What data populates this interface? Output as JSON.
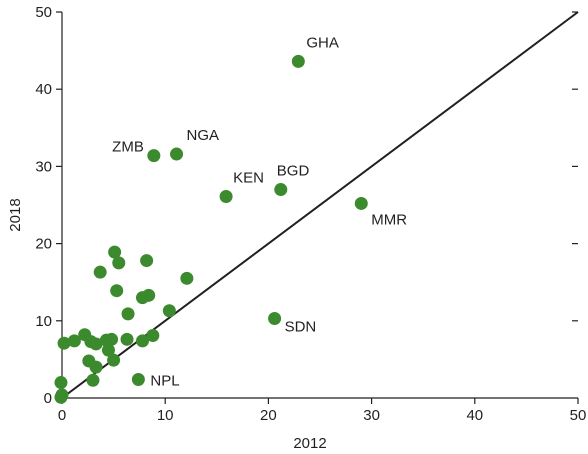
{
  "chart_data": {
    "type": "scatter",
    "title": "",
    "xlabel": "2012",
    "ylabel": "2018",
    "xlim": [
      0,
      50
    ],
    "ylim": [
      0,
      50
    ],
    "xticks": [
      0,
      10,
      20,
      30,
      40,
      50
    ],
    "yticks": [
      0,
      10,
      20,
      30,
      40,
      50
    ],
    "xtick_labels": [
      "0",
      "10",
      "20",
      "30",
      "40",
      "50"
    ],
    "ytick_labels": [
      "0",
      "10",
      "20",
      "30",
      "40",
      "50"
    ],
    "grid": false,
    "reference_line": {
      "from": [
        0,
        0
      ],
      "to": [
        50,
        50
      ]
    },
    "point_color": "#3c8a2e",
    "line_color": "#231f20",
    "points": [
      {
        "x": 22.9,
        "y": 43.6,
        "label": "GHA"
      },
      {
        "x": 8.9,
        "y": 31.4,
        "label": "ZMB"
      },
      {
        "x": 11.1,
        "y": 31.6,
        "label": "NGA"
      },
      {
        "x": 15.9,
        "y": 26.1,
        "label": "KEN"
      },
      {
        "x": 21.2,
        "y": 27.0,
        "label": "BGD"
      },
      {
        "x": 29.0,
        "y": 25.2,
        "label": "MMR"
      },
      {
        "x": 20.6,
        "y": 10.3,
        "label": "SDN"
      },
      {
        "x": 7.4,
        "y": 2.4,
        "label": "NPL"
      },
      {
        "x": 5.1,
        "y": 18.9,
        "label": ""
      },
      {
        "x": 5.5,
        "y": 17.5,
        "label": ""
      },
      {
        "x": 8.2,
        "y": 17.8,
        "label": ""
      },
      {
        "x": 3.7,
        "y": 16.3,
        "label": ""
      },
      {
        "x": 12.1,
        "y": 15.5,
        "label": ""
      },
      {
        "x": 5.3,
        "y": 13.9,
        "label": ""
      },
      {
        "x": 7.8,
        "y": 13.0,
        "label": ""
      },
      {
        "x": 8.4,
        "y": 13.3,
        "label": ""
      },
      {
        "x": 10.4,
        "y": 11.3,
        "label": ""
      },
      {
        "x": 6.4,
        "y": 10.9,
        "label": ""
      },
      {
        "x": 2.2,
        "y": 8.2,
        "label": ""
      },
      {
        "x": 8.8,
        "y": 8.1,
        "label": ""
      },
      {
        "x": 0.2,
        "y": 7.1,
        "label": ""
      },
      {
        "x": 1.2,
        "y": 7.4,
        "label": ""
      },
      {
        "x": 2.8,
        "y": 7.3,
        "label": ""
      },
      {
        "x": 3.3,
        "y": 7.0,
        "label": ""
      },
      {
        "x": 4.3,
        "y": 7.5,
        "label": ""
      },
      {
        "x": 4.8,
        "y": 7.6,
        "label": ""
      },
      {
        "x": 6.3,
        "y": 7.6,
        "label": ""
      },
      {
        "x": 7.8,
        "y": 7.4,
        "label": ""
      },
      {
        "x": 4.5,
        "y": 6.2,
        "label": ""
      },
      {
        "x": 2.6,
        "y": 4.8,
        "label": ""
      },
      {
        "x": 5.0,
        "y": 4.9,
        "label": ""
      },
      {
        "x": 3.3,
        "y": 4.0,
        "label": ""
      },
      {
        "x": 3.0,
        "y": 2.3,
        "label": ""
      },
      {
        "x": -0.1,
        "y": 2.0,
        "label": ""
      },
      {
        "x": 0.0,
        "y": 0.4,
        "label": ""
      },
      {
        "x": -0.1,
        "y": 0.1,
        "label": ""
      }
    ]
  }
}
